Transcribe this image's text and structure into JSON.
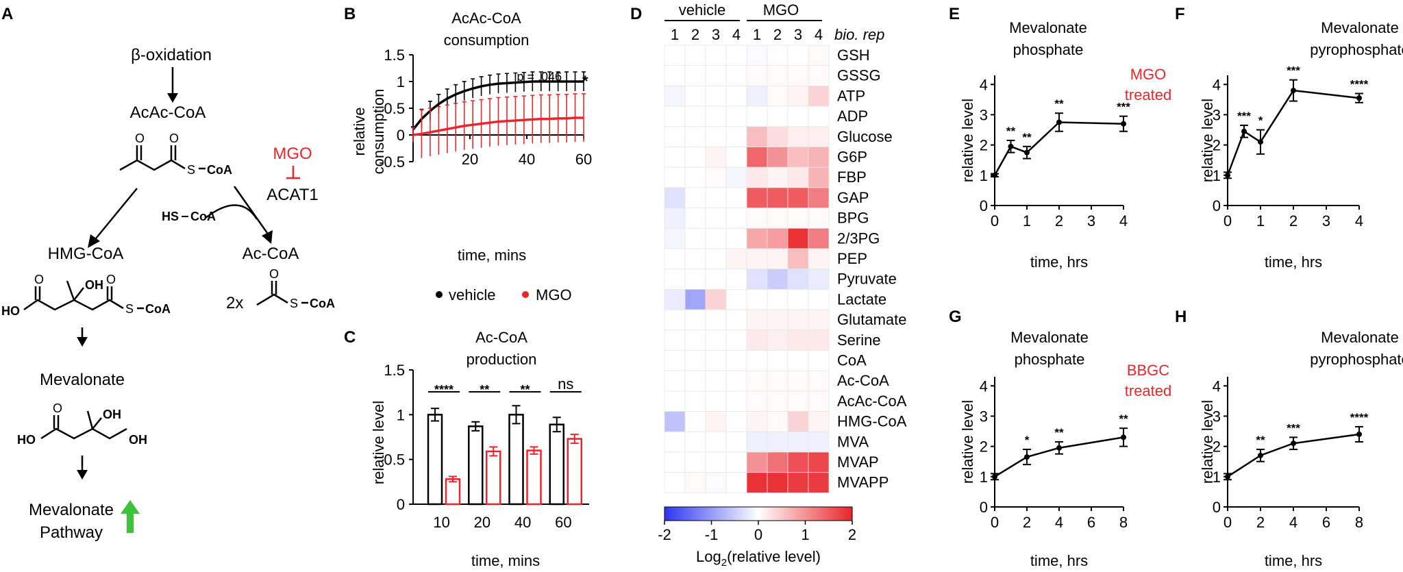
{
  "colors": {
    "black": "#000000",
    "red": "#e8262b",
    "green": "#3dc23a",
    "blue": "#2d36f0",
    "grid": "#cfcfcf"
  },
  "panel_labels": [
    "A",
    "B",
    "C",
    "D",
    "E",
    "F",
    "G",
    "H"
  ],
  "panelA": {
    "beta_ox": "β-oxidation",
    "acac": "AcAc-CoA",
    "mgo": "MGO",
    "acat1": "ACAT1",
    "hs_coa": "HS",
    "coa": "CoA",
    "hmg": "HMG-CoA",
    "acetyl": "Ac-CoA",
    "two_x": "2x",
    "mevalonate": "Mevalonate",
    "pathway_1": "Mevalonate",
    "pathway_2": "Pathway",
    "atom_O": "O",
    "atom_OH": "OH",
    "atom_HO": "HO",
    "atom_S": "S"
  },
  "legend": {
    "vehicle": "vehicle",
    "mgo": "MGO"
  },
  "side_labels": {
    "mgo_treated_1": "MGO",
    "mgo_treated_2": "treated",
    "bbgc_treated_1": "BBGC",
    "bbgc_treated_2": "treated"
  },
  "chart_data": [
    {
      "panel": "B",
      "type": "line",
      "title": [
        "AcAc-CoA",
        "consumption"
      ],
      "xlabel": "time, mins",
      "ylabel": [
        "relative",
        "consumption"
      ],
      "xlim": [
        0,
        60
      ],
      "ylim": [
        -0.5,
        1.5
      ],
      "xticks": [
        20,
        40,
        60
      ],
      "yticks": [
        -0.5,
        0,
        0.5,
        1,
        1.5
      ],
      "yticklabels": [
        "-0.5",
        "0",
        "0.5",
        "1",
        "1.5"
      ],
      "annotation": "p = .046",
      "star": "*",
      "series": [
        {
          "name": "vehicle",
          "x": [
            0,
            3,
            6,
            9,
            12,
            15,
            18,
            21,
            24,
            27,
            30,
            33,
            36,
            39,
            42,
            45,
            48,
            51,
            54,
            57,
            60
          ],
          "y": [
            0.1,
            0.3,
            0.45,
            0.58,
            0.68,
            0.76,
            0.82,
            0.87,
            0.91,
            0.94,
            0.96,
            0.97,
            0.98,
            0.99,
            1.0,
            1.0,
            1.0,
            1.0,
            1.0,
            1.0,
            1.0
          ],
          "err": 0.18
        },
        {
          "name": "MGO",
          "x": [
            0,
            3,
            6,
            9,
            12,
            15,
            18,
            21,
            24,
            27,
            30,
            33,
            36,
            39,
            42,
            45,
            48,
            51,
            54,
            57,
            60
          ],
          "y": [
            0.0,
            0.02,
            0.05,
            0.08,
            0.11,
            0.14,
            0.17,
            0.19,
            0.21,
            0.23,
            0.25,
            0.26,
            0.27,
            0.28,
            0.29,
            0.3,
            0.3,
            0.31,
            0.31,
            0.32,
            0.32
          ],
          "err": 0.45
        }
      ]
    },
    {
      "panel": "C",
      "type": "bar",
      "title": [
        "Ac-CoA",
        "production"
      ],
      "xlabel": "time, mins",
      "ylabel": "relative level",
      "categories": [
        "10",
        "20",
        "40",
        "60"
      ],
      "ylim": [
        0,
        1.5
      ],
      "yticks": [
        0,
        0.5,
        1,
        1.5
      ],
      "yticklabels": [
        "0",
        "0.5",
        "1",
        "1.5"
      ],
      "series": [
        {
          "name": "vehicle",
          "values": [
            1.0,
            0.87,
            1.0,
            0.89
          ],
          "err": [
            0.07,
            0.05,
            0.1,
            0.08
          ]
        },
        {
          "name": "MGO",
          "values": [
            0.28,
            0.59,
            0.6,
            0.73
          ],
          "err": [
            0.03,
            0.05,
            0.04,
            0.05
          ]
        }
      ],
      "significance": [
        "****",
        "**",
        "**",
        "ns"
      ]
    },
    {
      "panel": "D",
      "type": "heatmap",
      "group_labels": [
        "vehicle",
        "MGO"
      ],
      "columns": [
        "1",
        "2",
        "3",
        "4",
        "1",
        "2",
        "3",
        "4"
      ],
      "col_header": "bio. rep",
      "rows": [
        "GSH",
        "GSSG",
        "ATP",
        "ADP",
        "Glucose",
        "G6P",
        "FBP",
        "GAP",
        "BPG",
        "2/3PG",
        "PEP",
        "Pyruvate",
        "Lactate",
        "Glutamate",
        "Serine",
        "CoA",
        "Ac-CoA",
        "AcAc-CoA",
        "HMG-CoA",
        "MVA",
        "MVAP",
        "MVAPP"
      ],
      "values": [
        [
          0,
          0,
          0,
          0,
          -0.05,
          0.02,
          0,
          0.05
        ],
        [
          0,
          0,
          0,
          0,
          0.05,
          0.05,
          0.05,
          0.05
        ],
        [
          -0.1,
          0,
          0,
          0,
          -0.15,
          0.05,
          0.1,
          0.4
        ],
        [
          0,
          0,
          0,
          0,
          0,
          0,
          0,
          0
        ],
        [
          0,
          0,
          0,
          0,
          0.6,
          0.3,
          0.15,
          0.15
        ],
        [
          0,
          0,
          0.1,
          0,
          1.4,
          1.0,
          0.6,
          0.7
        ],
        [
          0,
          0,
          0.05,
          -0.1,
          0.2,
          0.1,
          0.2,
          0.7
        ],
        [
          -0.3,
          0,
          0,
          0,
          1.5,
          1.5,
          1.5,
          1.2
        ],
        [
          -0.15,
          0,
          0,
          0,
          0.05,
          0.05,
          0.05,
          0.05
        ],
        [
          -0.1,
          0,
          0,
          0,
          0.8,
          0.9,
          1.9,
          1.2
        ],
        [
          0,
          0,
          0,
          0.1,
          0.1,
          0.1,
          0.6,
          0.1
        ],
        [
          0,
          0,
          0,
          0,
          -0.3,
          -0.5,
          -0.3,
          -0.2
        ],
        [
          -0.2,
          -0.9,
          0.4,
          0,
          0,
          0,
          0,
          0
        ],
        [
          0,
          0,
          0,
          0,
          0.1,
          0.1,
          0.1,
          0.1
        ],
        [
          0,
          0,
          0,
          0,
          0.2,
          0.15,
          0.2,
          0.2
        ],
        [
          0,
          0,
          0,
          0,
          0,
          0,
          0,
          0
        ],
        [
          0,
          0,
          0,
          0,
          0.05,
          0.05,
          0.05,
          0.05
        ],
        [
          0,
          0,
          0,
          0,
          0.05,
          0.05,
          0.05,
          0.05
        ],
        [
          -0.6,
          0,
          0.1,
          0,
          0.1,
          0.05,
          0.4,
          0.1
        ],
        [
          0,
          0,
          0,
          0,
          -0.15,
          -0.15,
          -0.15,
          -0.15
        ],
        [
          0,
          0,
          0,
          0,
          1.0,
          1.3,
          1.6,
          1.7
        ],
        [
          0,
          0.05,
          -0.05,
          0,
          1.9,
          1.9,
          1.8,
          1.8
        ]
      ],
      "colorbar": {
        "min": -2,
        "max": 2,
        "ticks": [
          "-2",
          "-1",
          "0",
          "1",
          "2"
        ],
        "label": "Log",
        "label_sub": "2",
        "label_rest": "(relative level)"
      }
    },
    {
      "panel": "E",
      "type": "line",
      "title": [
        "Mevalonate",
        "phosphate"
      ],
      "xlabel": "time, hrs",
      "ylabel": "relative level",
      "xlim": [
        0,
        4
      ],
      "ylim": [
        0,
        4.3
      ],
      "xticks": [
        0,
        1,
        2,
        3,
        4
      ],
      "yticks": [
        0,
        1,
        2,
        3,
        4
      ],
      "x": [
        0,
        0.5,
        1,
        2,
        4
      ],
      "y": [
        1.0,
        1.95,
        1.75,
        2.75,
        2.7
      ],
      "err": [
        0.05,
        0.2,
        0.2,
        0.3,
        0.25
      ],
      "stars": [
        "",
        "**",
        "**",
        "**",
        "***"
      ]
    },
    {
      "panel": "F",
      "type": "line",
      "title": [
        "Mevalonate",
        "pyrophosphate"
      ],
      "xlabel": "time, hrs",
      "ylabel": "relative level",
      "xlim": [
        0,
        4
      ],
      "ylim": [
        0,
        4.3
      ],
      "xticks": [
        0,
        1,
        2,
        3,
        4
      ],
      "yticks": [
        0,
        1,
        2,
        3,
        4
      ],
      "x": [
        0,
        0.5,
        1,
        2,
        4
      ],
      "y": [
        1.0,
        2.45,
        2.1,
        3.8,
        3.55
      ],
      "err": [
        0.1,
        0.2,
        0.4,
        0.35,
        0.15
      ],
      "stars": [
        "",
        "***",
        "*",
        "***",
        "****"
      ]
    },
    {
      "panel": "G",
      "type": "line",
      "title": [
        "Mevalonate",
        "phosphate"
      ],
      "xlabel": "time, hrs",
      "ylabel": "relative level",
      "xlim": [
        0,
        8
      ],
      "ylim": [
        0,
        4.3
      ],
      "xticks": [
        0,
        2,
        4,
        6,
        8
      ],
      "yticks": [
        0,
        1,
        2,
        3,
        4
      ],
      "x": [
        0,
        2,
        4,
        8
      ],
      "y": [
        1.0,
        1.65,
        1.95,
        2.3
      ],
      "err": [
        0.1,
        0.25,
        0.2,
        0.3
      ],
      "stars": [
        "",
        "*",
        "**",
        "**"
      ]
    },
    {
      "panel": "H",
      "type": "line",
      "title": [
        "Mevalonate",
        "pyrophosphate"
      ],
      "xlabel": "time, hrs",
      "ylabel": "relative level",
      "xlim": [
        0,
        8
      ],
      "ylim": [
        0,
        4.3
      ],
      "xticks": [
        0,
        2,
        4,
        6,
        8
      ],
      "yticks": [
        0,
        1,
        2,
        3,
        4
      ],
      "x": [
        0,
        2,
        4,
        8
      ],
      "y": [
        1.0,
        1.7,
        2.1,
        2.4
      ],
      "err": [
        0.1,
        0.2,
        0.2,
        0.25
      ],
      "stars": [
        "",
        "**",
        "***",
        "****"
      ]
    }
  ]
}
